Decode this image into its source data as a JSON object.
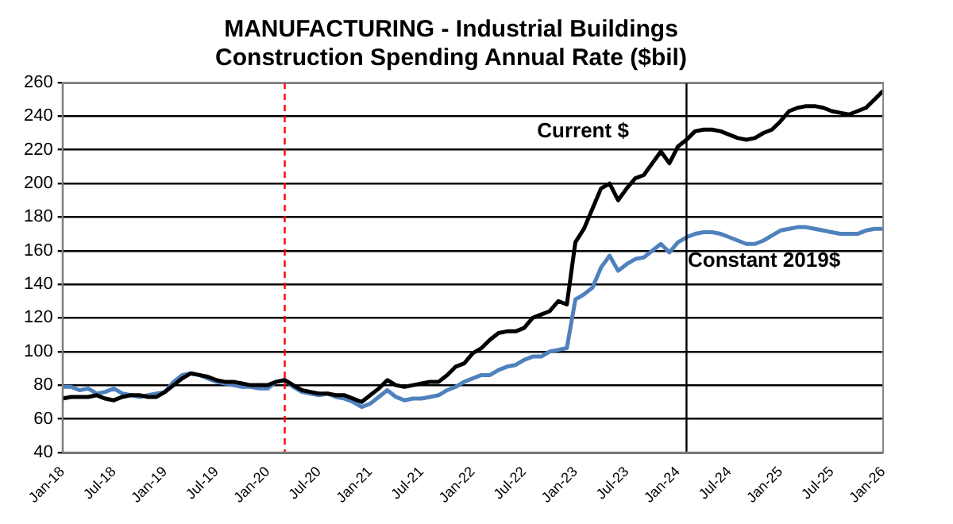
{
  "chart_data": {
    "type": "line",
    "title": "MANUFACTURING - Industrial Buildings\nConstruction Spending Annual Rate ($bil)",
    "x": [
      "2018-01",
      "2018-02",
      "2018-03",
      "2018-04",
      "2018-05",
      "2018-06",
      "2018-07",
      "2018-08",
      "2018-09",
      "2018-10",
      "2018-11",
      "2018-12",
      "2019-01",
      "2019-02",
      "2019-03",
      "2019-04",
      "2019-05",
      "2019-06",
      "2019-07",
      "2019-08",
      "2019-09",
      "2019-10",
      "2019-11",
      "2019-12",
      "2020-01",
      "2020-02",
      "2020-03",
      "2020-04",
      "2020-05",
      "2020-06",
      "2020-07",
      "2020-08",
      "2020-09",
      "2020-10",
      "2020-11",
      "2020-12",
      "2021-01",
      "2021-02",
      "2021-03",
      "2021-04",
      "2021-05",
      "2021-06",
      "2021-07",
      "2021-08",
      "2021-09",
      "2021-10",
      "2021-11",
      "2021-12",
      "2022-01",
      "2022-02",
      "2022-03",
      "2022-04",
      "2022-05",
      "2022-06",
      "2022-07",
      "2022-08",
      "2022-09",
      "2022-10",
      "2022-11",
      "2022-12",
      "2023-01",
      "2023-02",
      "2023-03",
      "2023-04",
      "2023-05",
      "2023-06",
      "2023-07",
      "2023-08",
      "2023-09",
      "2023-10",
      "2023-11",
      "2023-12",
      "2024-01",
      "2024-02",
      "2024-03",
      "2024-04",
      "2024-05",
      "2024-06",
      "2024-07",
      "2024-08",
      "2024-09",
      "2024-10",
      "2024-11",
      "2024-12",
      "2025-01",
      "2025-02",
      "2025-03",
      "2025-04",
      "2025-05",
      "2025-06",
      "2025-07",
      "2025-08",
      "2025-09",
      "2025-10",
      "2025-11",
      "2025-12",
      "2026-01"
    ],
    "series": [
      {
        "name": "Current $",
        "color": "#000000",
        "values": [
          72,
          73,
          73,
          73,
          74,
          72,
          71,
          73,
          74,
          74,
          73,
          73,
          76,
          80,
          84,
          87,
          86,
          85,
          83,
          82,
          82,
          81,
          80,
          80,
          80,
          82,
          83,
          80,
          77,
          76,
          75,
          75,
          74,
          74,
          72,
          70,
          74,
          78,
          83,
          80,
          79,
          80,
          81,
          82,
          82,
          86,
          91,
          93,
          99,
          102,
          107,
          111,
          112,
          112,
          114,
          120,
          122,
          124,
          130,
          128,
          165,
          173,
          185,
          197,
          200,
          190,
          197,
          203,
          205,
          212,
          219,
          212,
          222,
          226,
          231,
          232,
          232,
          231,
          229,
          227,
          226,
          227,
          230,
          232,
          237,
          243,
          245,
          246,
          246,
          245,
          243,
          242,
          241,
          243,
          245,
          250,
          255
        ]
      },
      {
        "name": "Constant 2019$",
        "color": "#4f81bd",
        "values": [
          79,
          79,
          77,
          78,
          75,
          76,
          78,
          75,
          74,
          73,
          74,
          75,
          76,
          82,
          86,
          87,
          86,
          84,
          82,
          81,
          80,
          79,
          79,
          78,
          78,
          82,
          83,
          79,
          76,
          75,
          74,
          75,
          73,
          72,
          70,
          67,
          69,
          73,
          77,
          73,
          71,
          72,
          72,
          73,
          74,
          77,
          79,
          82,
          84,
          86,
          86,
          89,
          91,
          92,
          95,
          97,
          97,
          100,
          101,
          102,
          131,
          134,
          138,
          150,
          157,
          148,
          152,
          155,
          156,
          160,
          164,
          159,
          165,
          168,
          170,
          171,
          171,
          170,
          168,
          166,
          164,
          164,
          166,
          169,
          172,
          173,
          174,
          174,
          173,
          172,
          171,
          170,
          170,
          170,
          172,
          173,
          173
        ]
      }
    ],
    "xlim": [
      "2018-01",
      "2026-01"
    ],
    "xticks": [
      {
        "value": "2018-01",
        "label": "Jan-18"
      },
      {
        "value": "2018-07",
        "label": "Jul-18"
      },
      {
        "value": "2019-01",
        "label": "Jan-19"
      },
      {
        "value": "2019-07",
        "label": "Jul-19"
      },
      {
        "value": "2020-01",
        "label": "Jan-20"
      },
      {
        "value": "2020-07",
        "label": "Jul-20"
      },
      {
        "value": "2021-01",
        "label": "Jan-21"
      },
      {
        "value": "2021-07",
        "label": "Jul-21"
      },
      {
        "value": "2022-01",
        "label": "Jan-22"
      },
      {
        "value": "2022-07",
        "label": "Jul-22"
      },
      {
        "value": "2023-01",
        "label": "Jan-23"
      },
      {
        "value": "2023-07",
        "label": "Jul-23"
      },
      {
        "value": "2024-01",
        "label": "Jan-24"
      },
      {
        "value": "2024-07",
        "label": "Jul-24"
      },
      {
        "value": "2025-01",
        "label": "Jan-25"
      },
      {
        "value": "2025-07",
        "label": "Jul-25"
      },
      {
        "value": "2026-01",
        "label": "Jan-26"
      }
    ],
    "ylim": [
      40,
      260
    ],
    "yticks": [
      40,
      60,
      80,
      100,
      120,
      140,
      160,
      180,
      200,
      220,
      240,
      260
    ],
    "grid": "y",
    "legend": false,
    "marker": "none",
    "line_style": "solid",
    "ref_lines": [
      {
        "axis": "x",
        "value": "2020-03",
        "color": "#ff0000",
        "line_style": "dashed"
      },
      {
        "axis": "x",
        "value": "2024-02",
        "color": "#000000",
        "line_style": "solid"
      }
    ]
  }
}
